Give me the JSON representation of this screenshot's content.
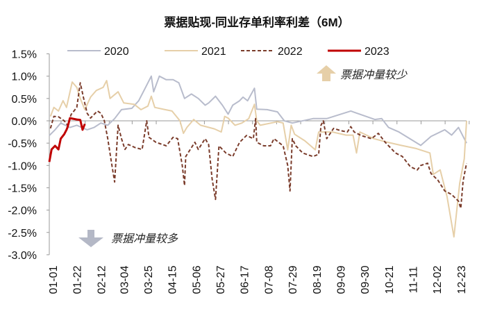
{
  "chart_data": {
    "type": "line",
    "title": "票据贴现-同业存单利率利差（6M）",
    "xlabel": "",
    "ylabel": "",
    "ylim": [
      -3.0,
      1.5
    ],
    "yticks": [
      "1.5%",
      "1.0%",
      "0.5%",
      "0.0%",
      "-0.5%",
      "-1.0%",
      "-1.5%",
      "-2.0%",
      "-2.5%",
      "-3.0%"
    ],
    "xticks": [
      "01-01",
      "01-22",
      "02-12",
      "03-04",
      "03-25",
      "04-15",
      "05-06",
      "05-27",
      "06-17",
      "07-08",
      "07-29",
      "08-19",
      "09-09",
      "09-30",
      "10-21",
      "11-11",
      "12-02",
      "12-23"
    ],
    "grid": false,
    "legend_position": "top",
    "annotations": [
      {
        "text": "票据冲量较少",
        "icon": "arrow-up-icon",
        "color": "#e6cfa8"
      },
      {
        "text": "票据冲量较多",
        "icon": "arrow-down-icon",
        "color": "#b4b8c6"
      }
    ],
    "series": [
      {
        "name": "2020",
        "color": "#b8bccc",
        "style": "solid",
        "points": [
          [
            "01-01",
            -0.33
          ],
          [
            "01-06",
            -0.2
          ],
          [
            "01-11",
            -0.05
          ],
          [
            "01-19",
            -0.15
          ],
          [
            "01-25",
            -0.1
          ],
          [
            "02-03",
            -0.2
          ],
          [
            "02-09",
            -0.15
          ],
          [
            "02-15",
            -0.05
          ],
          [
            "02-21",
            -0.1
          ],
          [
            "02-27",
            0.05
          ],
          [
            "03-05",
            0.25
          ],
          [
            "03-14",
            0.28
          ],
          [
            "03-20",
            0.45
          ],
          [
            "03-26",
            0.75
          ],
          [
            "03-31",
            1.0
          ],
          [
            "04-02",
            0.65
          ],
          [
            "04-07",
            1.0
          ],
          [
            "04-13",
            0.92
          ],
          [
            "04-19",
            0.92
          ],
          [
            "04-24",
            0.85
          ],
          [
            "04-29",
            0.5
          ],
          [
            "05-05",
            0.6
          ],
          [
            "05-11",
            0.5
          ],
          [
            "05-17",
            0.35
          ],
          [
            "05-20",
            0.4
          ],
          [
            "05-26",
            0.55
          ],
          [
            "06-01",
            0.35
          ],
          [
            "06-06",
            0.15
          ],
          [
            "06-10",
            0.35
          ],
          [
            "06-16",
            0.45
          ],
          [
            "06-19",
            0.53
          ],
          [
            "06-23",
            0.45
          ],
          [
            "06-29",
            0.73
          ],
          [
            "07-01",
            0.26
          ],
          [
            "07-10",
            0.25
          ],
          [
            "07-19",
            0.2
          ],
          [
            "07-25",
            0.0
          ],
          [
            "08-01",
            -0.05
          ],
          [
            "08-19",
            0.05
          ],
          [
            "08-31",
            0.05
          ],
          [
            "09-21",
            0.22
          ],
          [
            "10-12",
            0.03
          ],
          [
            "10-18",
            0.05
          ],
          [
            "10-24",
            -0.15
          ],
          [
            "11-02",
            -0.25
          ],
          [
            "11-21",
            -0.55
          ],
          [
            "11-30",
            -0.35
          ],
          [
            "12-12",
            -0.2
          ],
          [
            "12-18",
            -0.32
          ],
          [
            "12-24",
            -0.15
          ],
          [
            "12-31",
            -0.5
          ]
        ]
      },
      {
        "name": "2021",
        "color": "#e6cfa8",
        "style": "solid",
        "points": [
          [
            "01-02",
            0.1
          ],
          [
            "01-05",
            0.3
          ],
          [
            "01-09",
            0.22
          ],
          [
            "01-13",
            0.45
          ],
          [
            "01-16",
            0.3
          ],
          [
            "01-21",
            0.87
          ],
          [
            "01-25",
            0.75
          ],
          [
            "01-28",
            0.5
          ],
          [
            "02-01",
            0.25
          ],
          [
            "02-06",
            0.53
          ],
          [
            "02-11",
            0.68
          ],
          [
            "02-17",
            0.75
          ],
          [
            "02-20",
            0.9
          ],
          [
            "02-23",
            0.5
          ],
          [
            "03-02",
            0.65
          ],
          [
            "03-07",
            0.4
          ],
          [
            "03-16",
            0.37
          ],
          [
            "03-22",
            0.25
          ],
          [
            "03-28",
            0.33
          ],
          [
            "03-31",
            0.55
          ],
          [
            "04-03",
            0.3
          ],
          [
            "04-12",
            0.25
          ],
          [
            "04-18",
            0.22
          ],
          [
            "04-25",
            0.0
          ],
          [
            "04-28",
            -0.28
          ],
          [
            "05-01",
            -0.15
          ],
          [
            "05-07",
            0.03
          ],
          [
            "05-13",
            -0.1
          ],
          [
            "05-19",
            -0.14
          ],
          [
            "05-25",
            -0.18
          ],
          [
            "05-31",
            -0.25
          ],
          [
            "06-03",
            0.1
          ],
          [
            "06-06",
            0.06
          ],
          [
            "06-12",
            -0.1
          ],
          [
            "06-18",
            -0.05
          ],
          [
            "06-24",
            0.05
          ],
          [
            "06-29",
            0.37
          ],
          [
            "07-01",
            0.0
          ],
          [
            "07-04",
            -0.1
          ],
          [
            "07-19",
            -0.02
          ],
          [
            "07-24",
            -0.05
          ],
          [
            "07-28",
            -0.65
          ],
          [
            "07-31",
            -0.1
          ],
          [
            "08-03",
            -0.3
          ],
          [
            "08-12",
            -0.45
          ],
          [
            "08-21",
            -0.65
          ],
          [
            "08-24",
            -0.25
          ],
          [
            "09-05",
            -0.25
          ],
          [
            "09-17",
            -0.32
          ],
          [
            "09-23",
            -0.32
          ],
          [
            "09-26",
            -0.72
          ],
          [
            "09-29",
            -0.25
          ],
          [
            "10-11",
            -0.4
          ],
          [
            "10-23",
            -0.48
          ],
          [
            "11-04",
            -0.55
          ],
          [
            "11-17",
            -0.62
          ],
          [
            "11-29",
            -0.72
          ],
          [
            "12-02",
            -1.2
          ],
          [
            "12-08",
            -1.1
          ],
          [
            "12-14",
            -1.7
          ],
          [
            "12-20",
            -2.6
          ],
          [
            "12-25",
            -1.4
          ],
          [
            "12-29",
            -0.85
          ],
          [
            "12-31",
            0.0
          ]
        ]
      },
      {
        "name": "2022",
        "color": "#7a3b2a",
        "style": "dashed",
        "points": [
          [
            "01-02",
            -0.17
          ],
          [
            "01-05",
            0.1
          ],
          [
            "01-09",
            0.09
          ],
          [
            "01-14",
            0.0
          ],
          [
            "01-17",
            -0.1
          ],
          [
            "01-20",
            0.14
          ],
          [
            "01-25",
            0.3
          ],
          [
            "01-28",
            0.85
          ],
          [
            "01-31",
            0.5
          ],
          [
            "02-03",
            0.17
          ],
          [
            "02-06",
            0.06
          ],
          [
            "02-12",
            0.22
          ],
          [
            "02-15",
            0.17
          ],
          [
            "02-18",
            0.0
          ],
          [
            "02-21",
            -0.4
          ],
          [
            "02-24",
            -0.9
          ],
          [
            "02-27",
            -1.37
          ],
          [
            "03-02",
            -0.1
          ],
          [
            "03-05",
            -0.4
          ],
          [
            "03-08",
            -0.64
          ],
          [
            "03-11",
            -0.53
          ],
          [
            "03-17",
            -0.6
          ],
          [
            "03-23",
            -0.64
          ],
          [
            "03-27",
            0.0
          ],
          [
            "03-29",
            -0.37
          ],
          [
            "04-04",
            -0.48
          ],
          [
            "04-13",
            -0.56
          ],
          [
            "04-19",
            -0.37
          ],
          [
            "04-23",
            -0.4
          ],
          [
            "04-27",
            -1.0
          ],
          [
            "04-29",
            -1.45
          ],
          [
            "04-30",
            -0.8
          ],
          [
            "05-08",
            -0.48
          ],
          [
            "05-11",
            -0.64
          ],
          [
            "05-17",
            -0.4
          ],
          [
            "05-20",
            -0.53
          ],
          [
            "05-23",
            -1.3
          ],
          [
            "05-26",
            -1.76
          ],
          [
            "05-29",
            -0.56
          ],
          [
            "06-04",
            -0.72
          ],
          [
            "06-10",
            -0.8
          ],
          [
            "06-13",
            -0.64
          ],
          [
            "06-16",
            -0.48
          ],
          [
            "06-22",
            -0.33
          ],
          [
            "06-28",
            -0.4
          ],
          [
            "06-30",
            0.05
          ],
          [
            "07-01",
            -0.48
          ],
          [
            "07-07",
            -0.56
          ],
          [
            "07-13",
            -0.56
          ],
          [
            "07-16",
            -0.4
          ],
          [
            "07-24",
            -0.56
          ],
          [
            "07-28",
            -1.0
          ],
          [
            "07-30",
            -1.57
          ],
          [
            "08-01",
            -0.4
          ],
          [
            "08-04",
            -0.56
          ],
          [
            "08-10",
            -0.72
          ],
          [
            "08-19",
            -0.8
          ],
          [
            "08-24",
            -0.75
          ],
          [
            "08-26",
            -0.1
          ],
          [
            "08-28",
            0.0
          ],
          [
            "08-31",
            -0.4
          ],
          [
            "09-06",
            -0.17
          ],
          [
            "09-12",
            -0.22
          ],
          [
            "09-18",
            -0.25
          ],
          [
            "09-21",
            -0.13
          ],
          [
            "09-24",
            -0.25
          ],
          [
            "09-30",
            -0.33
          ],
          [
            "10-09",
            -0.4
          ],
          [
            "10-15",
            -0.28
          ],
          [
            "10-21",
            -0.48
          ],
          [
            "10-27",
            -0.64
          ],
          [
            "10-30",
            -0.72
          ],
          [
            "11-05",
            -0.8
          ],
          [
            "11-12",
            -1.03
          ],
          [
            "11-18",
            -1.1
          ],
          [
            "11-21",
            -1.0
          ],
          [
            "11-27",
            -0.95
          ],
          [
            "11-30",
            -1.18
          ],
          [
            "12-06",
            -1.33
          ],
          [
            "12-12",
            -1.57
          ],
          [
            "12-18",
            -1.65
          ],
          [
            "12-24",
            -1.8
          ],
          [
            "12-26",
            -1.96
          ],
          [
            "12-28",
            -1.35
          ],
          [
            "12-31",
            -0.95
          ]
        ]
      },
      {
        "name": "2023",
        "color": "#c00000",
        "style": "bold",
        "points": [
          [
            "01-01",
            -0.92
          ],
          [
            "01-03",
            -0.64
          ],
          [
            "01-06",
            -0.56
          ],
          [
            "01-09",
            -0.64
          ],
          [
            "01-11",
            -0.4
          ],
          [
            "01-14",
            -0.3
          ],
          [
            "01-16",
            -0.2
          ],
          [
            "01-17",
            -0.14
          ],
          [
            "01-19",
            0.06
          ],
          [
            "01-25",
            0.03
          ],
          [
            "01-28",
            0.02
          ],
          [
            "01-30",
            -0.2
          ],
          [
            "02-01",
            -0.07
          ]
        ]
      }
    ]
  }
}
